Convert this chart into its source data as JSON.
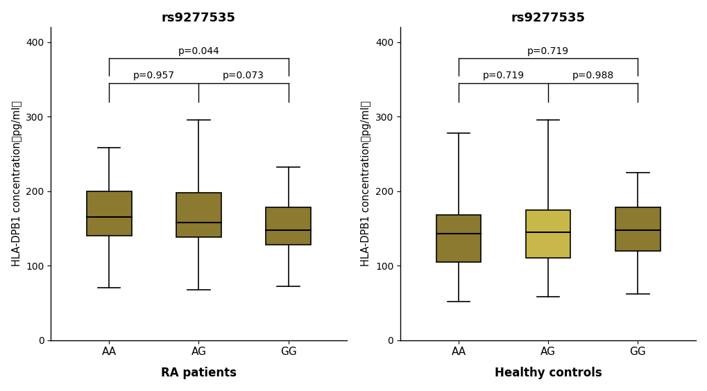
{
  "title": "rs9277535",
  "ylabel": "HLA-DPB1 concentration（pg/ml）",
  "ylim": [
    0,
    420
  ],
  "yticks": [
    0,
    100,
    200,
    300,
    400
  ],
  "categories": [
    "AA",
    "AG",
    "GG"
  ],
  "box_edge_color": "#000000",
  "median_color": "#000000",
  "whisker_color": "#000000",
  "panels": [
    {
      "xlabel": "RA patients",
      "boxes": [
        {
          "whislo": 70,
          "q1": 140,
          "med": 165,
          "q3": 200,
          "whishi": 258
        },
        {
          "whislo": 68,
          "q1": 138,
          "med": 158,
          "q3": 198,
          "whishi": 295
        },
        {
          "whislo": 72,
          "q1": 128,
          "med": 148,
          "q3": 178,
          "whishi": 232
        }
      ],
      "box_colors": [
        "#8B7A2F",
        "#8B7A2F",
        "#8B7A2F"
      ],
      "p_outer": "p=0.044",
      "p_inner_left": "p=0.957",
      "p_inner_right": "p=0.073"
    },
    {
      "xlabel": "Healthy controls",
      "boxes": [
        {
          "whislo": 52,
          "q1": 105,
          "med": 143,
          "q3": 168,
          "whishi": 278
        },
        {
          "whislo": 58,
          "q1": 110,
          "med": 145,
          "q3": 175,
          "whishi": 295
        },
        {
          "whislo": 62,
          "q1": 120,
          "med": 148,
          "q3": 178,
          "whishi": 225
        }
      ],
      "box_colors": [
        "#8B7A2F",
        "#C8B84A",
        "#8B7A2F"
      ],
      "p_outer": "p=0.719",
      "p_inner_left": "p=0.719",
      "p_inner_right": "p=0.988"
    }
  ],
  "background_color": "#ffffff",
  "title_fontsize": 13,
  "label_fontsize": 10.5,
  "tick_fontsize": 10,
  "xlabel_fontsize": 12,
  "annot_fontsize": 10
}
